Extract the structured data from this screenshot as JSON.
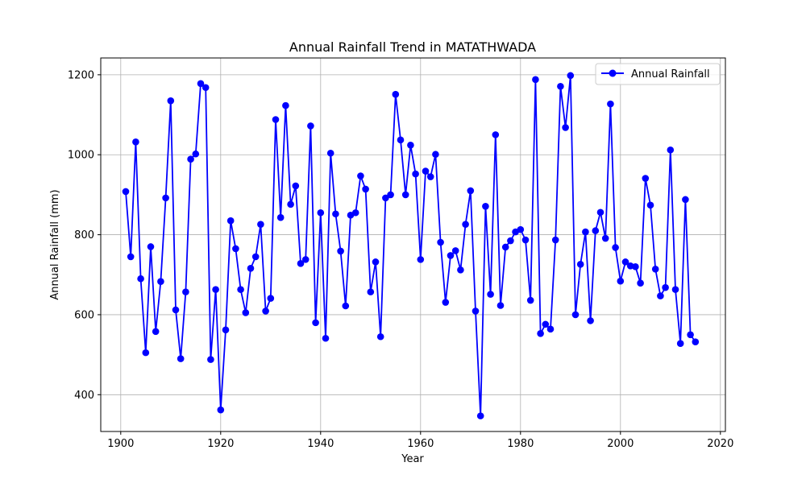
{
  "chart_data": {
    "type": "line",
    "title": "Annual Rainfall Trend in MATATHWADA",
    "xlabel": "Year",
    "ylabel": "Annual Rainfall (mm)",
    "xlim": [
      1896,
      2021
    ],
    "ylim": [
      308,
      1242
    ],
    "xticks": [
      1900,
      1920,
      1940,
      1960,
      1980,
      2000,
      2020
    ],
    "yticks": [
      400,
      600,
      800,
      1000,
      1200
    ],
    "grid": true,
    "legend_position": "top-right",
    "series": [
      {
        "name": "Annual Rainfall",
        "color": "#0000ff",
        "marker": "circle",
        "x": [
          1901,
          1902,
          1903,
          1904,
          1905,
          1906,
          1907,
          1908,
          1909,
          1910,
          1911,
          1912,
          1913,
          1914,
          1915,
          1916,
          1917,
          1918,
          1919,
          1920,
          1921,
          1922,
          1923,
          1924,
          1925,
          1926,
          1927,
          1928,
          1929,
          1930,
          1931,
          1932,
          1933,
          1934,
          1935,
          1936,
          1937,
          1938,
          1939,
          1940,
          1941,
          1942,
          1943,
          1944,
          1945,
          1946,
          1947,
          1948,
          1949,
          1950,
          1951,
          1952,
          1953,
          1954,
          1955,
          1956,
          1957,
          1958,
          1959,
          1960,
          1961,
          1962,
          1963,
          1964,
          1965,
          1966,
          1967,
          1968,
          1969,
          1970,
          1971,
          1972,
          1973,
          1974,
          1975,
          1976,
          1977,
          1978,
          1979,
          1980,
          1981,
          1982,
          1983,
          1984,
          1985,
          1986,
          1987,
          1988,
          1989,
          1990,
          1991,
          1992,
          1993,
          1994,
          1995,
          1996,
          1997,
          1998,
          1999,
          2000,
          2001,
          2002,
          2003,
          2004,
          2005,
          2006,
          2007,
          2008,
          2009,
          2010,
          2011,
          2012,
          2013,
          2014,
          2015
        ],
        "values": [
          908,
          745,
          1032,
          690,
          505,
          770,
          558,
          683,
          892,
          1135,
          612,
          490,
          657,
          989,
          1002,
          1178,
          1168,
          488,
          663,
          362,
          562,
          835,
          765,
          663,
          605,
          716,
          745,
          826,
          609,
          641,
          1088,
          843,
          1123,
          876,
          922,
          728,
          738,
          1072,
          580,
          855,
          541,
          1004,
          852,
          759,
          622,
          849,
          855,
          947,
          914,
          657,
          732,
          545,
          892,
          900,
          1151,
          1037,
          900,
          1024,
          952,
          738,
          959,
          945,
          1001,
          781,
          631,
          748,
          760,
          712,
          826,
          910,
          609,
          347,
          871,
          651,
          1050,
          623,
          769,
          785,
          807,
          813,
          787,
          636,
          1188,
          553,
          576,
          564,
          787,
          1171,
          1068,
          1198,
          600,
          726,
          807,
          585,
          810,
          856,
          791,
          1127,
          768,
          684,
          732,
          722,
          720,
          679,
          941,
          874,
          714,
          647,
          668,
          1012,
          663,
          528,
          888,
          550,
          532
        ]
      }
    ]
  }
}
